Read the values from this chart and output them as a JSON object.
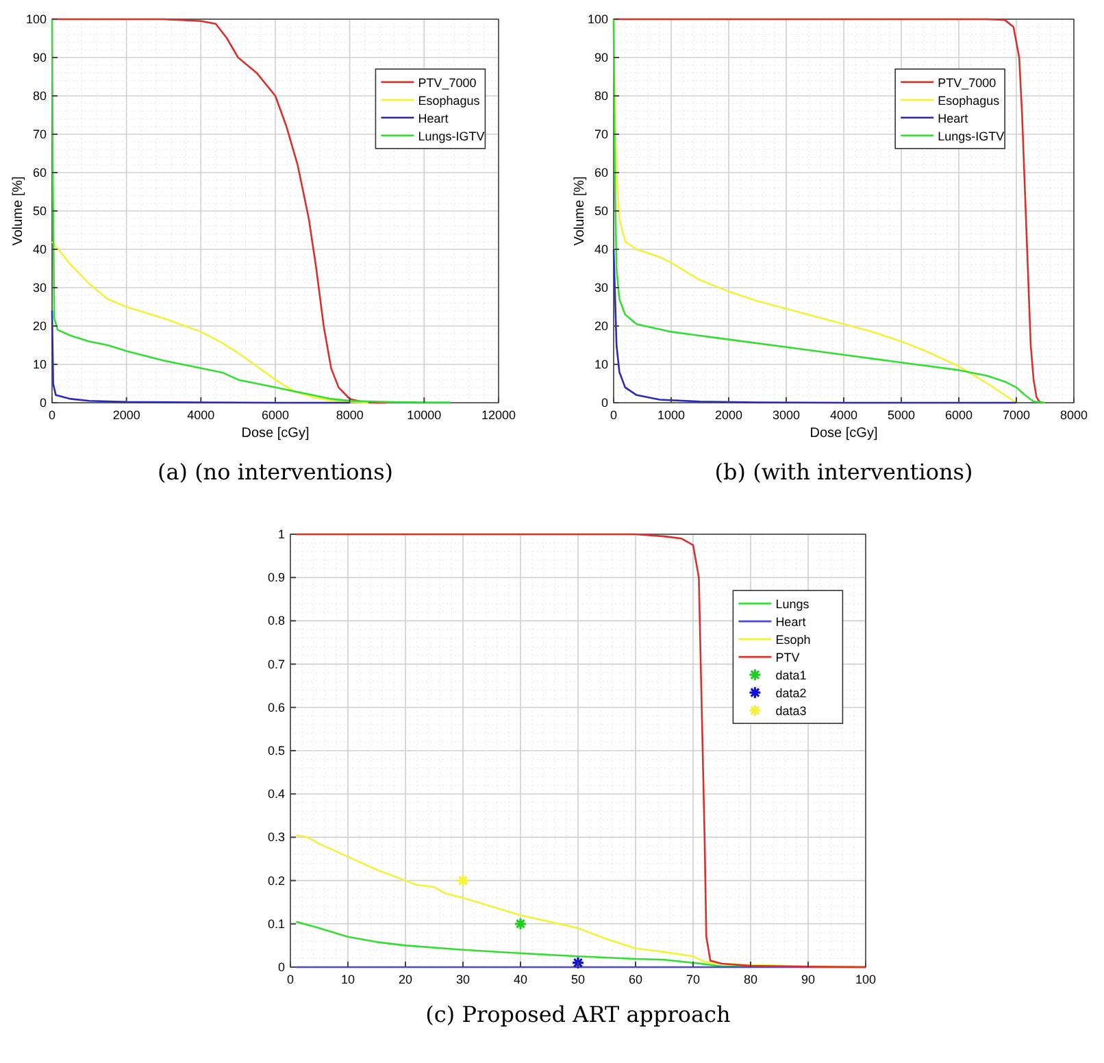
{
  "chart_data": [
    {
      "type": "line",
      "title": "(a) (no interventions)",
      "xlabel": "Dose [cGy]",
      "ylabel": "Volume [%]",
      "xlim": [
        0,
        12000
      ],
      "ylim": [
        0,
        100
      ],
      "xticks": [
        0,
        2000,
        4000,
        6000,
        8000,
        10000,
        12000
      ],
      "yticks": [
        0,
        10,
        20,
        30,
        40,
        50,
        60,
        70,
        80,
        90,
        100
      ],
      "grid": true,
      "legend": "top right",
      "series": [
        {
          "name": "PTV_7000",
          "color": "#d9302c",
          "x": [
            0,
            2000,
            3000,
            4000,
            4400,
            4700,
            5000,
            5500,
            6000,
            6300,
            6600,
            6900,
            7100,
            7300,
            7500,
            7700,
            8000,
            8300,
            8700,
            9000
          ],
          "values": [
            100,
            100,
            100,
            99.5,
            98.8,
            95,
            90,
            86,
            80,
            72,
            62,
            48,
            35,
            20,
            9,
            4,
            1,
            0.3,
            0,
            0
          ]
        },
        {
          "name": "Esophagus",
          "color": "#f2f23a",
          "x": [
            0,
            500,
            1000,
            1500,
            2000,
            3000,
            4000,
            4500,
            5000,
            5500,
            6000,
            6500,
            7000,
            7500,
            8000,
            8500
          ],
          "values": [
            42,
            36,
            31,
            27,
            25,
            22,
            18.5,
            16,
            13,
            9.5,
            6,
            3,
            1.5,
            0.6,
            0.2,
            0
          ]
        },
        {
          "name": "Heart",
          "color": "#2a2ab8",
          "x": [
            0,
            30,
            100,
            500,
            1000,
            2000,
            4000,
            6000,
            8000
          ],
          "values": [
            24,
            5,
            2,
            1,
            0.5,
            0.2,
            0.1,
            0,
            0
          ]
        },
        {
          "name": "Lungs-IGTV",
          "color": "#33dd33",
          "x": [
            0,
            20,
            60,
            150,
            500,
            1000,
            1500,
            2000,
            3000,
            4000,
            4600,
            5000,
            5500,
            6000,
            6500,
            7000,
            7500,
            8000,
            9000,
            10000,
            10700
          ],
          "values": [
            100,
            60,
            22,
            19,
            17.5,
            16,
            15,
            13.5,
            11,
            9,
            7.8,
            6,
            5,
            4,
            3,
            2,
            1,
            0.5,
            0.2,
            0.1,
            0.1
          ]
        }
      ]
    },
    {
      "type": "line",
      "title": "(b) (with interventions)",
      "xlabel": "Dose [cGy]",
      "ylabel": "Volume [%]",
      "xlim": [
        0,
        8000
      ],
      "ylim": [
        0,
        100
      ],
      "xticks": [
        0,
        1000,
        2000,
        3000,
        4000,
        5000,
        6000,
        7000,
        8000
      ],
      "yticks": [
        0,
        10,
        20,
        30,
        40,
        50,
        60,
        70,
        80,
        90,
        100
      ],
      "grid": true,
      "legend": "top right",
      "series": [
        {
          "name": "PTV_7000",
          "color": "#d9302c",
          "x": [
            0,
            6500,
            6800,
            6950,
            7050,
            7100,
            7150,
            7200,
            7250,
            7300,
            7350,
            7400,
            7450
          ],
          "values": [
            100,
            100,
            99.8,
            98,
            90,
            75,
            55,
            35,
            15,
            6,
            1.5,
            0.3,
            0
          ]
        },
        {
          "name": "Esophagus",
          "color": "#f2f23a",
          "x": [
            0,
            20,
            50,
            100,
            200,
            400,
            800,
            1000,
            1500,
            2000,
            2500,
            3000,
            3500,
            4000,
            4500,
            5000,
            5500,
            6000,
            6500,
            7000
          ],
          "values": [
            100,
            75,
            60,
            48,
            42,
            40,
            38,
            36.5,
            32,
            29,
            26.5,
            24.5,
            22.5,
            20.5,
            18.5,
            16,
            13,
            9.5,
            5,
            0
          ]
        },
        {
          "name": "Heart",
          "color": "#2a2ab8",
          "x": [
            0,
            50,
            100,
            200,
            400,
            800,
            1500,
            2500,
            4000,
            7000
          ],
          "values": [
            40,
            15,
            8,
            4,
            2,
            0.8,
            0.3,
            0.1,
            0,
            0
          ]
        },
        {
          "name": "Lungs-IGTV",
          "color": "#33dd33",
          "x": [
            0,
            20,
            50,
            100,
            200,
            400,
            1000,
            2000,
            3000,
            4000,
            5000,
            6000,
            6500,
            6800,
            7000,
            7150,
            7300,
            7500
          ],
          "values": [
            100,
            60,
            35,
            27,
            23,
            20.5,
            18.5,
            16.5,
            14.5,
            12.5,
            10.5,
            8.5,
            7,
            5.5,
            4,
            2,
            0.3,
            0
          ]
        }
      ]
    },
    {
      "type": "line",
      "title": "(c) Proposed ART approach",
      "xlim": [
        0,
        100
      ],
      "ylim": [
        0,
        1
      ],
      "xticks": [
        0,
        10,
        20,
        30,
        40,
        50,
        60,
        70,
        80,
        90,
        100
      ],
      "yticks": [
        0,
        0.1,
        0.2,
        0.3,
        0.4,
        0.5,
        0.6,
        0.7,
        0.8,
        0.9,
        1
      ],
      "grid": true,
      "legend": "top right",
      "series": [
        {
          "name": "Lungs",
          "color": "#33dd33",
          "x": [
            1,
            5,
            10,
            15,
            20,
            30,
            40,
            50,
            60,
            65,
            70,
            75,
            80
          ],
          "values": [
            0.105,
            0.09,
            0.07,
            0.058,
            0.05,
            0.04,
            0.032,
            0.025,
            0.019,
            0.017,
            0.01,
            0.002,
            0
          ]
        },
        {
          "name": "Heart",
          "color": "#4a4ad0",
          "x": [
            1,
            100
          ],
          "values": [
            0,
            0
          ]
        },
        {
          "name": "Esoph",
          "color": "#f2f23a",
          "x": [
            1,
            3,
            5,
            10,
            15,
            20,
            22,
            25,
            27,
            30,
            35,
            40,
            45,
            50,
            55,
            60,
            65,
            70,
            72,
            75,
            80,
            90,
            100
          ],
          "values": [
            0.305,
            0.3,
            0.285,
            0.255,
            0.225,
            0.2,
            0.19,
            0.185,
            0.17,
            0.16,
            0.14,
            0.12,
            0.105,
            0.09,
            0.065,
            0.043,
            0.035,
            0.025,
            0.012,
            0.008,
            0.005,
            0.002,
            0
          ]
        },
        {
          "name": "PTV",
          "color": "#d9302c",
          "x": [
            1,
            60,
            65,
            68,
            70,
            71,
            71.5,
            72,
            72.3,
            73,
            75,
            80,
            90,
            100
          ],
          "values": [
            1,
            1,
            0.995,
            0.99,
            0.975,
            0.9,
            0.6,
            0.3,
            0.07,
            0.015,
            0.008,
            0.003,
            0.001,
            0
          ]
        },
        {
          "name": "data1",
          "type": "scatter",
          "marker": "cross",
          "color": "#22cc22",
          "x": [
            40
          ],
          "values": [
            0.1
          ]
        },
        {
          "name": "data2",
          "type": "scatter",
          "marker": "cross",
          "color": "#1010dd",
          "x": [
            50
          ],
          "values": [
            0.01
          ]
        },
        {
          "name": "data3",
          "type": "scatter",
          "marker": "cross",
          "color": "#f2f23a",
          "x": [
            30
          ],
          "values": [
            0.2
          ]
        }
      ]
    }
  ]
}
